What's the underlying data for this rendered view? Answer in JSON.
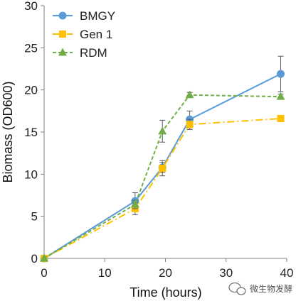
{
  "chart_data": {
    "type": "line",
    "xlabel": "Time (hours)",
    "ylabel": "Biomass (OD600)",
    "xlim": [
      0,
      40
    ],
    "ylim": [
      0,
      30
    ],
    "xticks": [
      0,
      10,
      20,
      30,
      40
    ],
    "yticks": [
      0,
      5,
      10,
      15,
      20,
      25,
      30
    ],
    "grid": false,
    "legend_position": "top-left",
    "series": [
      {
        "name": "BMGY",
        "color": "#5b9bd5",
        "line_style": "solid",
        "marker": "circle",
        "x": [
          0,
          15,
          19.5,
          24,
          39
        ],
        "y": [
          0,
          6.8,
          10.8,
          16.5,
          21.9
        ],
        "error": [
          0,
          1.0,
          0.6,
          1.0,
          2.1
        ]
      },
      {
        "name": "Gen 1",
        "color": "#ffc000",
        "line_style": "dash-dot",
        "marker": "square",
        "x": [
          0,
          15,
          19.5,
          24,
          39
        ],
        "y": [
          0,
          5.9,
          10.7,
          15.9,
          16.6
        ],
        "error": [
          0,
          0.7,
          0.9,
          0.6,
          0.3
        ]
      },
      {
        "name": "RDM",
        "color": "#70ad47",
        "line_style": "dashed",
        "marker": "triangle",
        "x": [
          0,
          15,
          19.5,
          24,
          39
        ],
        "y": [
          0,
          6.4,
          15.1,
          19.4,
          19.2
        ],
        "error": [
          0,
          0.5,
          1.3,
          0.3,
          0.3
        ]
      }
    ]
  },
  "watermark": {
    "text": "微生物发酵",
    "icon": "wechat-icon"
  }
}
